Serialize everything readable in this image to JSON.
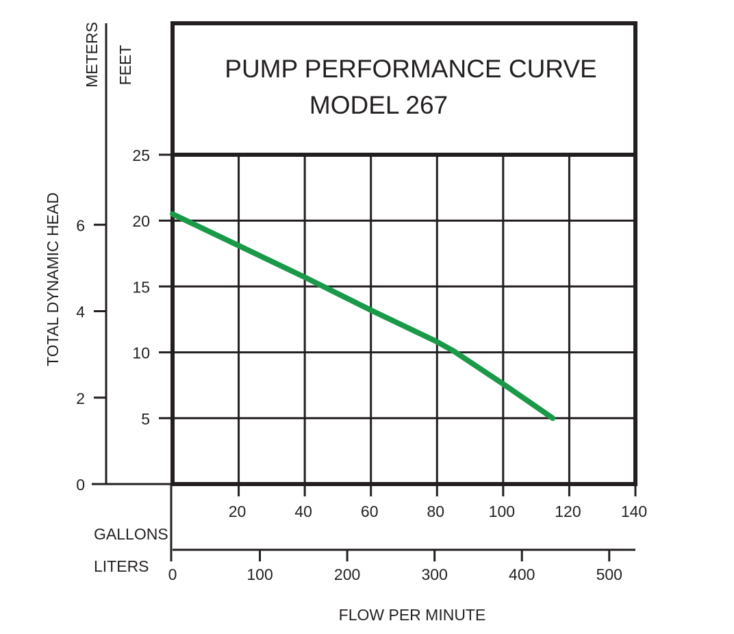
{
  "chart_data": {
    "type": "line",
    "title": "PUMP PERFORMANCE CURVE",
    "subtitle": "MODEL 267",
    "y_label": "TOTAL DYNAMIC HEAD",
    "y_unit_outer": "METERS",
    "y_unit_inner": "FEET",
    "y_feet_ticks": [
      "5",
      "10",
      "15",
      "20",
      "25"
    ],
    "y_meter_ticks": [
      "0",
      "2",
      "4",
      "6"
    ],
    "x_label": "FLOW PER MINUTE",
    "x_unit_gallons": "GALLONS",
    "x_unit_liters": "LITERS",
    "x_gallon_ticks": [
      "20",
      "40",
      "60",
      "80",
      "100",
      "120",
      "140"
    ],
    "x_liter_ticks": [
      "0",
      "100",
      "200",
      "300",
      "400",
      "500"
    ],
    "xlim_gallons": [
      0,
      140
    ],
    "ylim_feet": [
      0,
      25
    ],
    "grid": true,
    "series_color": "#1a9a48",
    "series": [
      {
        "x_gallons": [
          0,
          20,
          40,
          60,
          80,
          85,
          100,
          115
        ],
        "y_feet": [
          20.5,
          18.1,
          15.7,
          13.2,
          10.8,
          10.1,
          7.6,
          5.0
        ]
      }
    ]
  }
}
